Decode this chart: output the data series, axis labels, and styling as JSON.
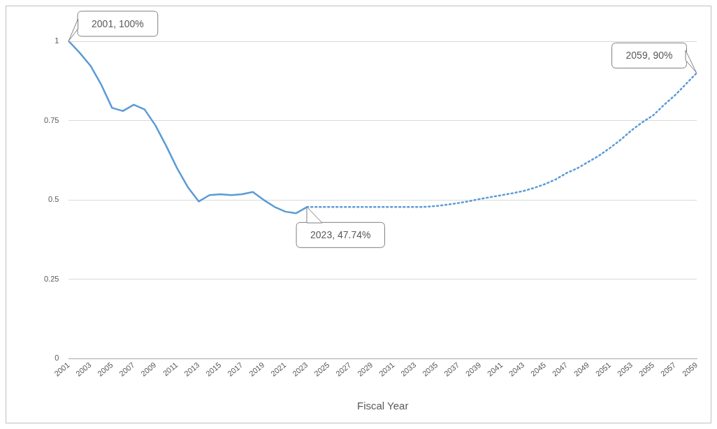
{
  "chart_data": {
    "type": "line",
    "xlabel": "Fiscal Year",
    "categories": [
      "2001",
      null,
      "2003",
      null,
      "2005",
      null,
      "2007",
      null,
      "2009",
      null,
      "2011",
      null,
      "2013",
      null,
      "2015",
      null,
      "2017",
      null,
      "2019",
      null,
      "2021",
      null,
      "2023",
      null,
      "2025",
      null,
      "2027",
      null,
      "2029",
      null,
      "2031",
      null,
      "2033",
      null,
      "2035",
      null,
      "2037",
      null,
      "2039",
      null,
      "2041",
      null,
      "2043",
      null,
      "2045",
      null,
      "2047",
      null,
      "2049",
      null,
      "2051",
      null,
      "2053",
      null,
      "2055",
      null,
      "2057",
      null,
      "2059"
    ],
    "series": [
      {
        "color": "#5b9bd5",
        "line_style": "solid",
        "values": [
          1,
          0.964,
          0.923,
          0.863,
          0.79,
          0.78,
          0.8,
          0.785,
          0.735,
          0.67,
          0.6,
          0.54,
          0.495,
          0.515,
          0.518,
          0.515,
          0.518,
          0.525,
          0.5,
          0.478,
          0.463,
          0.458,
          0.4774,
          null,
          null,
          null,
          null,
          null,
          null,
          null,
          null,
          null,
          null,
          null,
          null,
          null,
          null,
          null,
          null,
          null,
          null,
          null,
          null,
          null,
          null,
          null,
          null,
          null,
          null,
          null,
          null,
          null,
          null,
          null,
          null,
          null,
          null,
          null,
          null
        ]
      },
      {
        "color": "#5b9bd5",
        "line_style": "dotted",
        "values": [
          null,
          null,
          null,
          null,
          null,
          null,
          null,
          null,
          null,
          null,
          null,
          null,
          null,
          null,
          null,
          null,
          null,
          null,
          null,
          null,
          null,
          null,
          0.4774,
          0.4774,
          0.4774,
          0.4774,
          0.4774,
          0.4774,
          0.4774,
          0.4774,
          0.4774,
          0.4774,
          0.4774,
          0.478,
          0.481,
          0.485,
          0.49,
          0.496,
          0.503,
          0.509,
          0.515,
          0.521,
          0.528,
          0.538,
          0.55,
          0.565,
          0.585,
          0.6,
          0.62,
          0.64,
          0.664,
          0.69,
          0.72,
          0.745,
          0.767,
          0.8,
          0.83,
          0.865,
          0.9
        ]
      }
    ],
    "ylim": [
      0,
      1
    ],
    "yticks": [
      0,
      0.25,
      0.5,
      0.75,
      1
    ],
    "grid": "y",
    "legend": false,
    "marker": "none",
    "annotations": [
      {
        "text": "2001, 100%",
        "x": "2001",
        "y": 1
      },
      {
        "text": "2023, 47.74%",
        "x": "2023",
        "y": 0.4774
      },
      {
        "text": "2059, 90%",
        "x": "2059",
        "y": 0.9
      }
    ]
  }
}
